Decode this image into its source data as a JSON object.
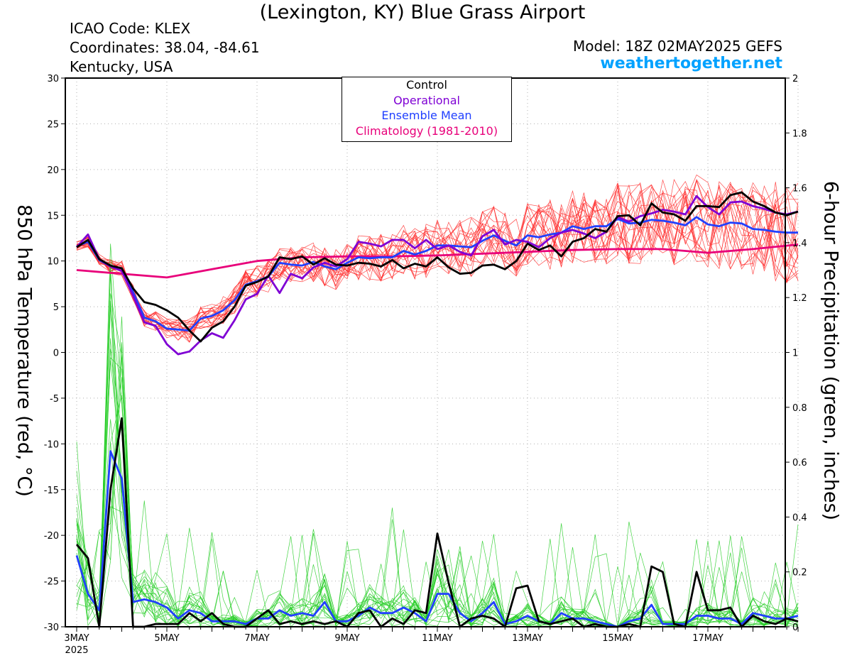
{
  "header": {
    "title": "(Lexington, KY) Blue Grass Airport",
    "icao": "ICAO Code: KLEX",
    "coords": "Coordinates: 38.04, -84.61",
    "region": "Kentucky, USA",
    "model": "Model: 18Z 02MAY2025 GEFS",
    "site": "weathertogether.net"
  },
  "chart_data": {
    "type": "line",
    "xlabel": "",
    "ylabel_left": "850 hPa Temperature (red, °C)",
    "ylabel_right": "6-hour Precipitation (green, inches)",
    "ylim_left": [
      -30,
      30
    ],
    "ylim_right": [
      0,
      2
    ],
    "x_tick_labels": [
      "3MAY",
      "5MAY",
      "7MAY",
      "9MAY",
      "11MAY",
      "13MAY",
      "15MAY",
      "17MAY"
    ],
    "x_year_label": "2025",
    "y_ticks_left": [
      "30",
      "25",
      "20",
      "15",
      "10",
      "5",
      "0",
      "-5",
      "-10",
      "-15",
      "-20",
      "-25",
      "-30"
    ],
    "y_ticks_right": [
      "2",
      "1.8",
      "1.6",
      "1.4",
      "1.2",
      "1",
      "0.8",
      "0.6",
      "0.4",
      "0.2",
      "0"
    ],
    "grid": true,
    "legend_position": "top-center",
    "legend": [
      "Control",
      "Operational",
      "Ensemble Mean",
      "Climatology (1981-2010)"
    ],
    "colors": {
      "control": "#000000",
      "operational": "#7f00d4",
      "ensemble_mean": "#2040ff",
      "climatology": "#e8007a",
      "temp_members": "#ff2a2a",
      "precip_members": "#22cc22",
      "site": "#00a2ff"
    },
    "series": [
      {
        "name": "Control",
        "unit": "degC",
        "day_offset": [
          0,
          0.25,
          0.5,
          0.75,
          1,
          1.25,
          1.5,
          1.75,
          2,
          2.25,
          2.5,
          2.75,
          3,
          3.25,
          3.5,
          3.75,
          4,
          4.25,
          4.5,
          4.75,
          5,
          5.25,
          5.5,
          5.75,
          6,
          6.25,
          6.5,
          6.75,
          7,
          7.25,
          7.5,
          7.75,
          8,
          8.25,
          8.5,
          8.75,
          9,
          9.25,
          9.5,
          9.75,
          10,
          10.25,
          10.5,
          10.75,
          11,
          11.25,
          11.5,
          11.75,
          12,
          12.25,
          12.5,
          12.75,
          13,
          13.25,
          13.5,
          13.75,
          14,
          14.25,
          14.5,
          14.75,
          15,
          15.25,
          15.5,
          15.75,
          16
        ],
        "values": [
          11.5,
          12.3,
          10.2,
          9.5,
          9.2,
          7,
          5.5,
          5.2,
          4.6,
          3.8,
          2.4,
          1.2,
          2.7,
          3.4,
          5,
          7.3,
          7.7,
          8.3,
          10.4,
          10.2,
          10.5,
          9.6,
          10.3,
          9.6,
          9.5,
          9.8,
          9.7,
          9.4,
          10.1,
          9.2,
          9.7,
          9.4,
          10.4,
          9.3,
          8.6,
          8.7,
          9.5,
          9.6,
          9.1,
          10,
          11.9,
          11.2,
          11.7,
          10.5,
          12.1,
          12.5,
          13.5,
          13.2,
          14.9,
          15,
          13.9,
          16.3,
          15.3,
          15.1,
          14.4,
          16,
          16,
          15.9,
          17.2,
          17.5,
          16.5,
          16,
          15.3,
          15,
          15.4
        ]
      },
      {
        "name": "Operational",
        "unit": "degC",
        "day_offset": [
          0,
          0.25,
          0.5,
          0.75,
          1,
          1.25,
          1.5,
          1.75,
          2,
          2.25,
          2.5,
          2.75,
          3,
          3.25,
          3.5,
          3.75,
          4,
          4.25,
          4.5,
          4.75,
          5,
          5.25,
          5.5,
          5.75,
          6,
          6.25,
          6.5,
          6.75,
          7,
          7.25,
          7.5,
          7.75,
          8,
          8.25,
          8.5,
          8.75,
          9,
          9.25,
          9.5,
          9.75,
          10,
          10.25,
          10.5,
          10.75,
          11,
          11.25,
          11.5,
          11.75,
          12,
          12.25,
          12.5,
          12.75,
          13,
          13.25,
          13.5,
          13.75,
          14,
          14.25,
          14.5,
          14.75,
          15,
          15.25,
          15.5,
          15.75,
          16
        ],
        "values": [
          11.5,
          12.9,
          10.2,
          9.4,
          8.9,
          6.2,
          3.3,
          2.9,
          0.9,
          -0.2,
          0.1,
          1.3,
          2.1,
          1.6,
          3.5,
          5.8,
          6.4,
          8.4,
          6.5,
          8.6,
          8.1,
          9.3,
          9.8,
          9.4,
          10.2,
          12.1,
          11.9,
          11.6,
          12.3,
          12.3,
          11.4,
          12.3,
          11.3,
          11.7,
          11,
          10.6,
          12.7,
          13.4,
          11.8,
          12.3,
          12.1,
          11.5,
          12.5,
          13.1,
          13.4,
          13,
          12.5,
          13.2,
          14.8,
          14.3,
          14.9,
          15.2,
          15.6,
          15.4,
          15.1,
          17.1,
          15.9,
          15.1,
          16.4,
          16.5,
          16,
          15.7,
          15.3,
          15.1,
          15.4
        ]
      },
      {
        "name": "Ensemble Mean",
        "unit": "degC",
        "day_offset": [
          0,
          0.25,
          0.5,
          0.75,
          1,
          1.25,
          1.5,
          1.75,
          2,
          2.25,
          2.5,
          2.75,
          3,
          3.25,
          3.5,
          3.75,
          4,
          4.25,
          4.5,
          4.75,
          5,
          5.25,
          5.5,
          5.75,
          6,
          6.25,
          6.5,
          6.75,
          7,
          7.25,
          7.5,
          7.75,
          8,
          8.25,
          8.5,
          8.75,
          9,
          9.25,
          9.5,
          9.75,
          10,
          10.25,
          10.5,
          10.75,
          11,
          11.25,
          11.5,
          11.75,
          12,
          12.25,
          12.5,
          12.75,
          13,
          13.25,
          13.5,
          13.75,
          14,
          14.25,
          14.5,
          14.75,
          15,
          15.25,
          15.5,
          15.75,
          16
        ],
        "values": [
          11.6,
          12.1,
          10.1,
          9.4,
          9.2,
          6.6,
          3.8,
          3.4,
          2.6,
          2.5,
          2.4,
          3.7,
          4,
          4.6,
          5.7,
          7.4,
          7.8,
          8.3,
          9.8,
          9.6,
          9.5,
          9.9,
          9.4,
          9.1,
          9.8,
          10.4,
          10.3,
          10.4,
          10.4,
          11.1,
          10.7,
          11.1,
          11.7,
          11.7,
          11.6,
          11.5,
          12.2,
          12.8,
          12.2,
          11.7,
          12.8,
          12.6,
          12.9,
          13.1,
          13.8,
          13.5,
          13.8,
          13.8,
          14.6,
          14.1,
          14.2,
          14.5,
          14.4,
          14.2,
          13.9,
          14.8,
          14,
          13.8,
          14.2,
          14.1,
          13.5,
          13.4,
          13.2,
          13.1,
          13.1
        ]
      },
      {
        "name": "Climatology (1981-2010)",
        "unit": "degC",
        "day_offset": [
          0,
          2,
          3,
          4,
          5,
          6,
          7,
          8,
          9,
          10,
          11,
          12,
          13,
          14,
          15,
          16
        ],
        "values": [
          9,
          8.2,
          9.1,
          10,
          10.4,
          10.5,
          10.5,
          10.6,
          10.8,
          11,
          11.2,
          11.3,
          11.3,
          10.9,
          11.3,
          11.8
        ]
      },
      {
        "name": "Control",
        "unit": "inches",
        "day_offset": [
          0,
          0.25,
          0.5,
          0.75,
          1,
          1.25,
          1.5,
          1.75,
          2,
          2.25,
          2.5,
          2.75,
          3,
          3.25,
          3.5,
          3.75,
          4,
          4.25,
          4.5,
          4.75,
          5,
          5.25,
          5.5,
          5.75,
          6,
          6.25,
          6.5,
          6.75,
          7,
          7.25,
          7.5,
          7.75,
          8,
          8.25,
          8.5,
          8.75,
          9,
          9.25,
          9.5,
          9.75,
          10,
          10.25,
          10.5,
          10.75,
          11,
          11.25,
          11.5,
          11.75,
          12,
          12.25,
          12.5,
          12.75,
          13,
          13.25,
          13.5,
          13.75,
          14,
          14.25,
          14.5,
          14.75,
          15,
          15.25,
          15.5,
          15.75,
          16
        ],
        "values": [
          0.3,
          0.25,
          0,
          0.5,
          0.76,
          0,
          0,
          0.01,
          0.01,
          0.01,
          0.05,
          0.02,
          0.05,
          0.01,
          0,
          0,
          0.03,
          0.06,
          0.01,
          0.02,
          0.01,
          0.02,
          0.01,
          0.02,
          0,
          0.05,
          0.06,
          0,
          0.03,
          0.01,
          0.06,
          0.05,
          0.34,
          0.16,
          0,
          0.03,
          0.04,
          0.03,
          0,
          0.14,
          0.15,
          0.02,
          0.01,
          0.02,
          0.03,
          0,
          0.01,
          0,
          0,
          0.01,
          0,
          0.22,
          0.2,
          0.01,
          0,
          0.2,
          0.06,
          0.06,
          0.07,
          0,
          0.04,
          0.02,
          0.01,
          0.03,
          0.02
        ]
      },
      {
        "name": "Ensemble Mean",
        "unit": "inches",
        "day_offset": [
          0,
          0.25,
          0.5,
          0.75,
          1,
          1.25,
          1.5,
          1.75,
          2,
          2.25,
          2.5,
          2.75,
          3,
          3.25,
          3.5,
          3.75,
          4,
          4.25,
          4.5,
          4.75,
          5,
          5.25,
          5.5,
          5.75,
          6,
          6.25,
          6.5,
          6.75,
          7,
          7.25,
          7.5,
          7.75,
          8,
          8.25,
          8.5,
          8.75,
          9,
          9.25,
          9.5,
          9.75,
          10,
          10.25,
          10.5,
          10.75,
          11,
          11.25,
          11.5,
          11.75,
          12,
          12.25,
          12.5,
          12.75,
          13,
          13.25,
          13.5,
          13.75,
          14,
          14.25,
          14.5,
          14.75,
          15,
          15.25,
          15.5,
          15.75,
          16
        ],
        "values": [
          0.26,
          0.12,
          0.06,
          0.64,
          0.54,
          0.09,
          0.1,
          0.09,
          0.07,
          0.03,
          0.06,
          0.05,
          0.02,
          0.02,
          0.02,
          0.01,
          0.03,
          0.03,
          0.06,
          0.04,
          0.05,
          0.04,
          0.09,
          0.02,
          0.02,
          0.04,
          0.07,
          0.05,
          0.05,
          0.07,
          0.05,
          0.02,
          0.12,
          0.12,
          0.05,
          0.02,
          0.05,
          0.09,
          0.01,
          0.02,
          0.04,
          0.02,
          0.01,
          0.05,
          0.03,
          0.03,
          0.02,
          0.01,
          0,
          0.02,
          0.03,
          0.08,
          0.01,
          0.01,
          0.01,
          0.04,
          0.04,
          0.03,
          0.03,
          0.01,
          0.05,
          0.04,
          0.03,
          0.03,
          0.04
        ]
      }
    ]
  }
}
